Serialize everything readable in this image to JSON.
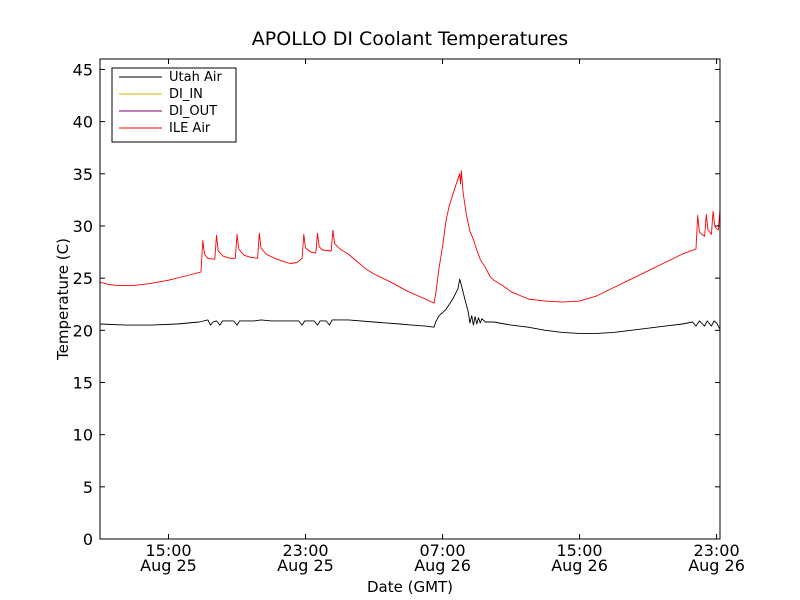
{
  "chart_data": {
    "type": "line",
    "title": "APOLLO DI Coolant Temperatures",
    "xlabel": "Date (GMT)",
    "ylabel": "Temperature (C)",
    "x_unit": "hours since Aug 25 00:00 GMT",
    "xlim": [
      11.0,
      47.2
    ],
    "ylim": [
      0,
      46
    ],
    "yticks": [
      0,
      5,
      10,
      15,
      20,
      25,
      30,
      35,
      40,
      45
    ],
    "xticks": [
      {
        "value": 15,
        "time": "15:00",
        "date": "Aug 25"
      },
      {
        "value": 23,
        "time": "23:00",
        "date": "Aug 25"
      },
      {
        "value": 31,
        "time": "07:00",
        "date": "Aug 26"
      },
      {
        "value": 39,
        "time": "15:00",
        "date": "Aug 26"
      },
      {
        "value": 47,
        "time": "23:00",
        "date": "Aug 26"
      }
    ],
    "grid": false,
    "legend_position": "top-left",
    "series": [
      {
        "name": "Utah Air",
        "color": "#000000",
        "points": [
          [
            11.0,
            20.6
          ],
          [
            12.5,
            20.5
          ],
          [
            14.0,
            20.5
          ],
          [
            15.5,
            20.6
          ],
          [
            16.8,
            20.8
          ],
          [
            17.3,
            21.0
          ],
          [
            17.45,
            20.5
          ],
          [
            17.6,
            20.8
          ],
          [
            17.8,
            20.9
          ],
          [
            18.0,
            20.5
          ],
          [
            18.15,
            20.9
          ],
          [
            18.8,
            20.9
          ],
          [
            19.0,
            20.5
          ],
          [
            19.15,
            20.9
          ],
          [
            20.0,
            20.9
          ],
          [
            20.4,
            21.0
          ],
          [
            21.0,
            20.9
          ],
          [
            22.0,
            20.9
          ],
          [
            22.6,
            20.9
          ],
          [
            22.8,
            20.5
          ],
          [
            22.95,
            20.9
          ],
          [
            23.5,
            20.9
          ],
          [
            23.7,
            20.5
          ],
          [
            23.85,
            20.9
          ],
          [
            24.2,
            20.9
          ],
          [
            24.4,
            20.5
          ],
          [
            24.55,
            21.0
          ],
          [
            25.5,
            21.0
          ],
          [
            27.0,
            20.8
          ],
          [
            28.5,
            20.6
          ],
          [
            29.2,
            20.5
          ],
          [
            30.0,
            20.4
          ],
          [
            30.5,
            20.3
          ],
          [
            30.6,
            20.8
          ],
          [
            30.8,
            21.4
          ],
          [
            31.2,
            22.0
          ],
          [
            31.6,
            23.0
          ],
          [
            31.9,
            24.0
          ],
          [
            32.0,
            24.9
          ],
          [
            32.1,
            24.3
          ],
          [
            32.3,
            23.0
          ],
          [
            32.5,
            21.8
          ],
          [
            32.6,
            20.7
          ],
          [
            32.7,
            21.4
          ],
          [
            32.8,
            20.5
          ],
          [
            32.9,
            21.3
          ],
          [
            33.0,
            20.6
          ],
          [
            33.1,
            21.2
          ],
          [
            33.2,
            20.7
          ],
          [
            33.3,
            21.1
          ],
          [
            33.5,
            20.8
          ],
          [
            34.0,
            20.8
          ],
          [
            35.0,
            20.5
          ],
          [
            36.0,
            20.3
          ],
          [
            37.0,
            20.0
          ],
          [
            38.0,
            19.8
          ],
          [
            39.0,
            19.7
          ],
          [
            40.0,
            19.7
          ],
          [
            41.0,
            19.8
          ],
          [
            42.0,
            20.0
          ],
          [
            43.0,
            20.2
          ],
          [
            44.0,
            20.4
          ],
          [
            45.0,
            20.6
          ],
          [
            45.6,
            20.8
          ],
          [
            45.8,
            20.4
          ],
          [
            46.0,
            20.9
          ],
          [
            46.3,
            20.4
          ],
          [
            46.45,
            20.9
          ],
          [
            46.7,
            20.4
          ],
          [
            46.85,
            20.9
          ],
          [
            47.0,
            20.7
          ],
          [
            47.2,
            20.1
          ]
        ]
      },
      {
        "name": "DI_IN",
        "color": "#e8b000",
        "points": []
      },
      {
        "name": "DI_OUT",
        "color": "#800080",
        "points": []
      },
      {
        "name": "ILE Air",
        "color": "#ff0000",
        "points": [
          [
            11.0,
            24.6
          ],
          [
            11.5,
            24.4
          ],
          [
            12.0,
            24.3
          ],
          [
            13.0,
            24.3
          ],
          [
            14.0,
            24.5
          ],
          [
            15.0,
            24.8
          ],
          [
            16.0,
            25.2
          ],
          [
            16.9,
            25.6
          ],
          [
            17.0,
            28.6
          ],
          [
            17.1,
            27.3
          ],
          [
            17.3,
            26.9
          ],
          [
            17.7,
            26.8
          ],
          [
            17.8,
            29.1
          ],
          [
            17.9,
            27.6
          ],
          [
            18.2,
            27.1
          ],
          [
            18.6,
            26.9
          ],
          [
            18.9,
            26.9
          ],
          [
            19.0,
            29.2
          ],
          [
            19.1,
            27.8
          ],
          [
            19.4,
            27.2
          ],
          [
            19.8,
            27.0
          ],
          [
            20.2,
            26.9
          ],
          [
            20.3,
            29.3
          ],
          [
            20.4,
            27.9
          ],
          [
            20.7,
            27.3
          ],
          [
            21.2,
            26.9
          ],
          [
            21.7,
            26.6
          ],
          [
            22.1,
            26.4
          ],
          [
            22.5,
            26.5
          ],
          [
            22.8,
            26.9
          ],
          [
            22.9,
            29.2
          ],
          [
            23.0,
            27.9
          ],
          [
            23.3,
            27.5
          ],
          [
            23.6,
            27.4
          ],
          [
            23.7,
            29.3
          ],
          [
            23.8,
            28.0
          ],
          [
            24.0,
            27.7
          ],
          [
            24.5,
            27.6
          ],
          [
            24.6,
            29.6
          ],
          [
            24.7,
            28.3
          ],
          [
            25.0,
            27.8
          ],
          [
            25.5,
            27.3
          ],
          [
            26.0,
            26.6
          ],
          [
            26.5,
            25.9
          ],
          [
            27.0,
            25.4
          ],
          [
            28.0,
            24.6
          ],
          [
            29.0,
            23.7
          ],
          [
            30.0,
            23.0
          ],
          [
            30.5,
            22.6
          ],
          [
            30.6,
            23.5
          ],
          [
            30.8,
            26.0
          ],
          [
            31.0,
            28.0
          ],
          [
            31.2,
            30.5
          ],
          [
            31.4,
            32.0
          ],
          [
            31.6,
            33.0
          ],
          [
            31.8,
            34.0
          ],
          [
            32.0,
            35.0
          ],
          [
            32.05,
            34.0
          ],
          [
            32.1,
            35.3
          ],
          [
            32.2,
            33.2
          ],
          [
            32.4,
            31.0
          ],
          [
            32.6,
            29.5
          ],
          [
            32.8,
            28.7
          ],
          [
            33.0,
            27.7
          ],
          [
            33.2,
            26.8
          ],
          [
            33.5,
            26.0
          ],
          [
            33.8,
            25.1
          ],
          [
            34.0,
            24.8
          ],
          [
            34.5,
            24.3
          ],
          [
            35.0,
            23.7
          ],
          [
            36.0,
            23.0
          ],
          [
            37.0,
            22.8
          ],
          [
            38.0,
            22.7
          ],
          [
            39.0,
            22.8
          ],
          [
            40.0,
            23.3
          ],
          [
            41.0,
            24.1
          ],
          [
            42.0,
            24.9
          ],
          [
            43.0,
            25.7
          ],
          [
            44.0,
            26.5
          ],
          [
            45.0,
            27.3
          ],
          [
            45.8,
            27.8
          ],
          [
            45.9,
            31.0
          ],
          [
            46.0,
            29.4
          ],
          [
            46.3,
            29.0
          ],
          [
            46.4,
            31.1
          ],
          [
            46.5,
            29.6
          ],
          [
            46.7,
            29.2
          ],
          [
            46.8,
            31.4
          ],
          [
            46.9,
            29.9
          ],
          [
            47.1,
            29.6
          ],
          [
            47.2,
            31.6
          ]
        ]
      }
    ]
  }
}
